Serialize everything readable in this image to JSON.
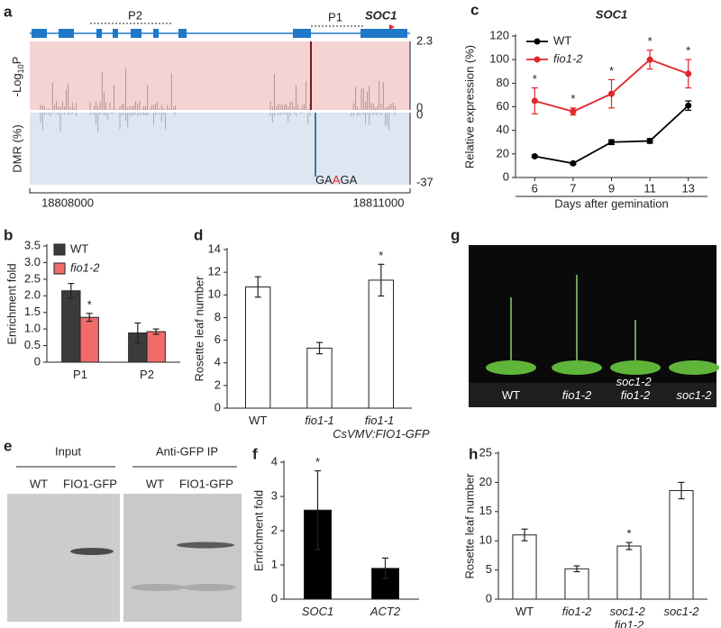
{
  "track": {
    "label": "a",
    "gene": "SOC1",
    "primers": [
      "P2",
      "P1"
    ],
    "top_label": {
      "main": "-Log",
      "sub": "10",
      "tail": "P"
    },
    "top_ticks": [
      2.3,
      0
    ],
    "bottom_label": "DMR (%)",
    "bottom_ticks": [
      0,
      -37
    ],
    "motif": [
      "GA",
      "A",
      "GA"
    ],
    "coordinates": [
      18808000,
      18811000
    ]
  },
  "chart_data": [
    {
      "type": "line",
      "label": "c",
      "title": "SOC1",
      "y_label": "Relative expression (%)",
      "x_label": "Days after gemination",
      "categories": [
        "6",
        "7",
        "9",
        "11",
        "13"
      ],
      "series": [
        {
          "name": "WT",
          "color": "#000000",
          "values": [
            18,
            12,
            30,
            31,
            61
          ],
          "errors": [
            1,
            1,
            2,
            2,
            4
          ]
        },
        {
          "name": "fio1-2",
          "color": "#e0262a",
          "values": [
            65,
            56,
            71,
            100,
            88
          ],
          "errors": [
            11,
            3,
            12,
            8,
            12
          ]
        }
      ],
      "ylim": [
        0,
        120
      ],
      "yticks": [
        0,
        20,
        40,
        60,
        80,
        100,
        120
      ],
      "legend": "upper left",
      "annotations": [
        {
          "text": "*",
          "x": "6",
          "series": "fio1-2"
        },
        {
          "text": "*",
          "x": "7",
          "series": "fio1-2"
        },
        {
          "text": "*",
          "x": "9",
          "series": "fio1-2"
        },
        {
          "text": "*",
          "x": "11",
          "series": "fio1-2"
        },
        {
          "text": "*",
          "x": "13",
          "series": "fio1-2"
        }
      ]
    },
    {
      "type": "bar",
      "label": "b",
      "y_label": "Enrichment fold",
      "categories": [
        "P1",
        "P2"
      ],
      "series": [
        {
          "name": "WT",
          "color": "#3b3b3b",
          "values": [
            2.15,
            0.88
          ],
          "errors": [
            0.22,
            0.3
          ]
        },
        {
          "name": "fio1-2",
          "color": "#f26b6b",
          "values": [
            1.35,
            0.92
          ],
          "errors": [
            0.12,
            0.08
          ]
        }
      ],
      "ylim": [
        0,
        3.5
      ],
      "yticks": [
        0,
        0.5,
        {
          "value": 1,
          "label": "1.0"
        },
        1.5,
        {
          "value": 2,
          "label": "2.0"
        },
        2.5,
        {
          "value": 3,
          "label": "3.0"
        },
        3.5
      ],
      "legend": "upper left",
      "annotations": [
        {
          "text": "*",
          "x": "P1",
          "series": "fio1-2"
        }
      ]
    },
    {
      "type": "bar",
      "label": "d",
      "y_label": "Rosette leaf number",
      "categories": [
        "WT",
        "fio1-1",
        "fio1-1 CsVMV:FIO1-GFP"
      ],
      "values": [
        10.7,
        5.3,
        11.3
      ],
      "errors": [
        0.9,
        0.5,
        1.4
      ],
      "color": "#ffffff",
      "ylim": [
        0,
        14
      ],
      "yticks": [
        0,
        2,
        4,
        6,
        8,
        10,
        12,
        14
      ],
      "annotations": [
        {
          "text": "*",
          "x": "fio1-1 CsVMV:FIO1-GFP"
        }
      ]
    },
    {
      "type": "bar",
      "label": "f",
      "y_label": "Enrichment fold",
      "categories": [
        "SOC1",
        "ACT2"
      ],
      "values": [
        2.6,
        0.9
      ],
      "errors": [
        1.15,
        0.3
      ],
      "color": "#000000",
      "ylim": [
        0,
        4
      ],
      "yticks": [
        0,
        1,
        2,
        3,
        4
      ],
      "annotations": [
        {
          "text": "*",
          "x": "SOC1"
        }
      ]
    },
    {
      "type": "bar",
      "label": "h",
      "y_label": "Rosette leaf number",
      "categories": [
        "WT",
        "fio1-2",
        "soc1-2 fio1-2",
        "soc1-2"
      ],
      "values": [
        11,
        5.2,
        9.1,
        18.6
      ],
      "errors": [
        1,
        0.5,
        0.6,
        1.4
      ],
      "color": "#ffffff",
      "ylim": [
        0,
        25
      ],
      "yticks": [
        0,
        5,
        10,
        15,
        20,
        25
      ],
      "annotations": [
        {
          "text": "*",
          "x": "soc1-2 fio1-2"
        }
      ]
    }
  ],
  "gel": {
    "label": "e",
    "groups": [
      {
        "title": "Input",
        "lanes": [
          "WT",
          "FIO1-GFP"
        ]
      },
      {
        "title": "Anti-GFP IP",
        "lanes": [
          "WT",
          "FIO1-GFP"
        ]
      }
    ]
  },
  "photo": {
    "label": "g",
    "plants": [
      "WT",
      "fio1-2",
      "soc1-2 fio1-2",
      "soc1-2"
    ]
  }
}
